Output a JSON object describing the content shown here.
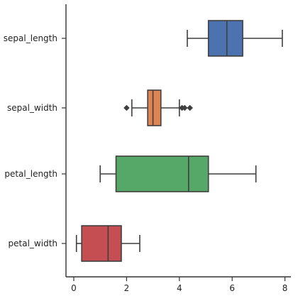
{
  "chart_data": {
    "type": "box",
    "orientation": "horizontal",
    "title": "",
    "xlabel": "",
    "ylabel": "",
    "xlim": [
      -0.4,
      8.3
    ],
    "xticks": [
      0,
      2,
      4,
      6,
      8
    ],
    "categories": [
      "sepal_length",
      "sepal_width",
      "petal_length",
      "petal_width"
    ],
    "boxes": [
      {
        "category": "sepal_length",
        "whisker_low": 4.3,
        "q1": 5.1,
        "median": 5.8,
        "q3": 6.4,
        "whisker_high": 7.9,
        "outliers": [],
        "color": "#4c72b0"
      },
      {
        "category": "sepal_width",
        "whisker_low": 2.2,
        "q1": 2.8,
        "median": 3.0,
        "q3": 3.3,
        "whisker_high": 4.0,
        "outliers": [
          2.0,
          4.1,
          4.2,
          4.4
        ],
        "color": "#dd8452"
      },
      {
        "category": "petal_length",
        "whisker_low": 1.0,
        "q1": 1.6,
        "median": 4.35,
        "q3": 5.1,
        "whisker_high": 6.9,
        "outliers": [],
        "color": "#55a868"
      },
      {
        "category": "petal_width",
        "whisker_low": 0.1,
        "q1": 0.3,
        "median": 1.3,
        "q3": 1.8,
        "whisker_high": 2.5,
        "outliers": [],
        "color": "#c44e52"
      }
    ],
    "grid": false,
    "legend": "none"
  }
}
